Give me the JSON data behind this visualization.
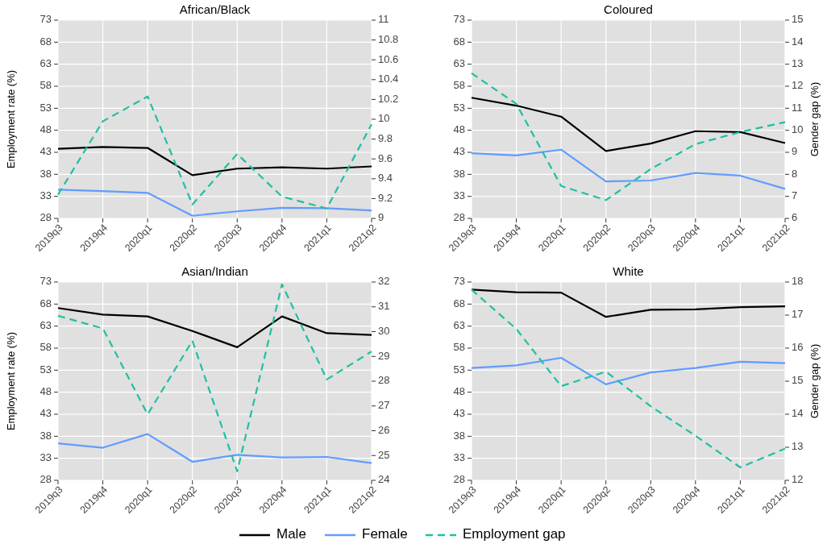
{
  "chart_data": [
    {
      "type": "line",
      "title": "African/Black",
      "ylabel": "Employment rate (%)",
      "categories": [
        "2019q3",
        "2019q4",
        "2020q1",
        "2020q2",
        "2020q3",
        "2020q4",
        "2021q1",
        "2021q2"
      ],
      "ylim": [
        28,
        73
      ],
      "yticks": [
        28,
        33,
        38,
        43,
        48,
        53,
        58,
        63,
        68,
        73
      ],
      "y2lim": [
        9,
        11
      ],
      "y2ticks": [
        9,
        9.2,
        9.4,
        9.6,
        9.8,
        10,
        10.2,
        10.4,
        10.6,
        10.8,
        11
      ],
      "grid": true,
      "legend": "bottom",
      "series": [
        {
          "name": "Male",
          "color": "#000000",
          "values": [
            43.8,
            44.2,
            44.0,
            37.8,
            39.3,
            39.6,
            39.3,
            39.8
          ]
        },
        {
          "name": "Female",
          "color": "#619cff",
          "values": [
            34.5,
            34.2,
            33.8,
            28.6,
            29.6,
            30.4,
            30.3,
            29.8
          ]
        },
        {
          "name": "Employment gap",
          "color": "#1fbfa3",
          "axis": "y2",
          "line_style": "dashed",
          "values": [
            9.24,
            9.98,
            10.23,
            9.14,
            9.65,
            9.22,
            9.1,
            9.95
          ]
        }
      ]
    },
    {
      "type": "line",
      "title": "Coloured",
      "y2label": "Gender gap (%)",
      "categories": [
        "2019q3",
        "2019q4",
        "2020q1",
        "2020q2",
        "2020q3",
        "2020q4",
        "2021q1",
        "2021q2"
      ],
      "ylim": [
        28,
        73
      ],
      "yticks": [
        28,
        33,
        38,
        43,
        48,
        53,
        58,
        63,
        68,
        73
      ],
      "y2lim": [
        6,
        15
      ],
      "y2ticks": [
        6,
        7,
        8,
        9,
        10,
        11,
        12,
        13,
        14,
        15
      ],
      "grid": true,
      "series": [
        {
          "color": "#000000",
          "values": [
            55.4,
            53.6,
            51.1,
            43.3,
            45.0,
            47.8,
            47.6,
            45.1
          ]
        },
        {
          "color": "#619cff",
          "values": [
            42.8,
            42.3,
            43.6,
            36.4,
            36.6,
            38.3,
            37.7,
            34.7
          ]
        },
        {
          "color": "#1fbfa3",
          "axis": "y2",
          "line_style": "dashed",
          "values": [
            12.59,
            11.2,
            7.47,
            6.83,
            8.24,
            9.37,
            9.92,
            10.37
          ]
        }
      ]
    },
    {
      "type": "line",
      "title": "Asian/Indian",
      "ylabel": "Employment rate (%)",
      "categories": [
        "2019q3",
        "2019q4",
        "2020q1",
        "2020q2",
        "2020q3",
        "2020q4",
        "2021q1",
        "2021q2"
      ],
      "ylim": [
        28,
        73
      ],
      "yticks": [
        28,
        33,
        38,
        43,
        48,
        53,
        58,
        63,
        68,
        73
      ],
      "y2lim": [
        24,
        32
      ],
      "y2ticks": [
        24,
        25,
        26,
        27,
        28,
        29,
        30,
        31,
        32
      ],
      "grid": true,
      "series": [
        {
          "color": "#000000",
          "values": [
            67.1,
            65.6,
            65.2,
            61.9,
            58.2,
            65.2,
            61.4,
            61.0
          ]
        },
        {
          "color": "#619cff",
          "values": [
            36.4,
            35.4,
            38.5,
            32.2,
            33.8,
            33.2,
            33.3,
            31.9
          ]
        },
        {
          "color": "#1fbfa3",
          "axis": "y2",
          "line_style": "dashed",
          "values": [
            30.64,
            30.13,
            26.66,
            29.63,
            24.36,
            31.91,
            28.07,
            29.2
          ]
        }
      ]
    },
    {
      "type": "line",
      "title": "White",
      "y2label": "Gender gap (%)",
      "categories": [
        "2019q3",
        "2019q4",
        "2020q1",
        "2020q2",
        "2020q3",
        "2020q4",
        "2021q1",
        "2021q2"
      ],
      "ylim": [
        28,
        73
      ],
      "yticks": [
        28,
        33,
        38,
        43,
        48,
        53,
        58,
        63,
        68,
        73
      ],
      "y2lim": [
        12,
        18
      ],
      "y2ticks": [
        12,
        13,
        14,
        15,
        16,
        17,
        18
      ],
      "grid": true,
      "series": [
        {
          "color": "#000000",
          "values": [
            71.3,
            70.7,
            70.6,
            65.1,
            66.7,
            66.8,
            67.3,
            67.5
          ]
        },
        {
          "color": "#619cff",
          "values": [
            53.5,
            54.1,
            55.8,
            49.8,
            52.5,
            53.5,
            54.9,
            54.6
          ]
        },
        {
          "color": "#1fbfa3",
          "axis": "y2",
          "line_style": "dashed",
          "values": [
            17.77,
            16.58,
            14.85,
            15.29,
            14.24,
            13.35,
            12.39,
            12.96
          ]
        }
      ]
    }
  ]
}
